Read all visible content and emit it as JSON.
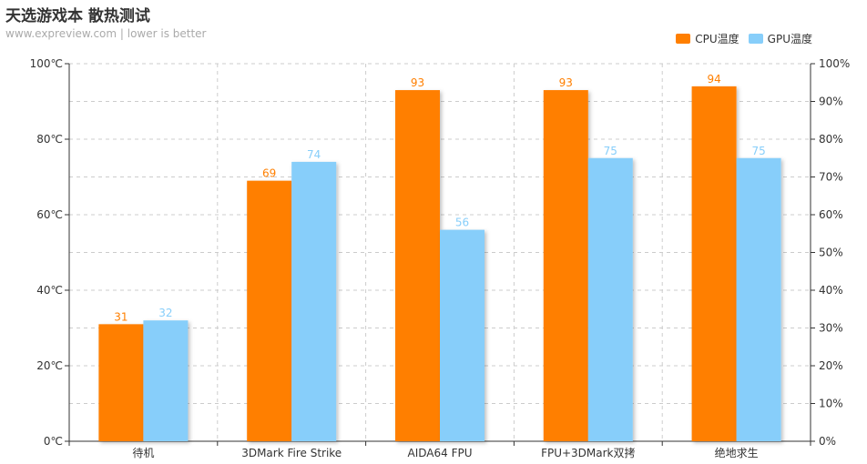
{
  "header": {
    "title": "天选游戏本 散热测试",
    "subtitle": "www.expreview.com  |  lower is better"
  },
  "chart_data": {
    "type": "bar",
    "categories": [
      "待机",
      "3DMark Fire Strike",
      "AIDA64 FPU",
      "FPU+3DMark双拷",
      "绝地求生"
    ],
    "series": [
      {
        "name": "CPU温度",
        "values": [
          31,
          69,
          93,
          93,
          94
        ],
        "color": "#ff7f00"
      },
      {
        "name": "GPU温度",
        "values": [
          32,
          74,
          56,
          75,
          75
        ],
        "color": "#87cefa"
      }
    ],
    "ylim": [
      0,
      100
    ],
    "y_ticks": [
      "0℃",
      "20℃",
      "40℃",
      "60℃",
      "80℃",
      "100℃"
    ],
    "y2_ticks": [
      "0%",
      "10%",
      "20%",
      "30%",
      "40%",
      "50%",
      "60%",
      "70%",
      "80%",
      "90%",
      "100%"
    ],
    "grid": true,
    "legend_position": "top-right"
  }
}
